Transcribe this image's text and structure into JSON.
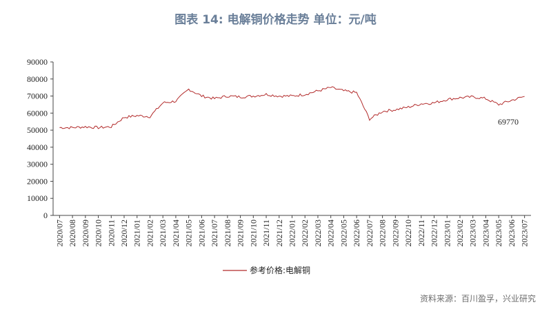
{
  "title": "图表 14: 电解铜价格走势  单位：元/吨",
  "source": "资料来源：百川盈孚，兴业研究",
  "chart_data": {
    "type": "line",
    "title": "图表 14: 电解铜价格走势  单位：元/吨",
    "ylabel": "",
    "xlabel": "",
    "ylim": [
      0,
      90000
    ],
    "yticks": [
      0,
      10000,
      20000,
      30000,
      40000,
      50000,
      60000,
      70000,
      80000,
      90000
    ],
    "categories": [
      "2020/07",
      "2020/08",
      "2020/09",
      "2020/10",
      "2020/11",
      "2020/12",
      "2021/01",
      "2021/02",
      "2021/03",
      "2021/04",
      "2021/05",
      "2021/06",
      "2021/07",
      "2021/08",
      "2021/09",
      "2021/10",
      "2021/11",
      "2021/12",
      "2022/01",
      "2022/02",
      "2022/03",
      "2022/04",
      "2022/05",
      "2022/06",
      "2022/07",
      "2022/08",
      "2022/09",
      "2022/10",
      "2022/11",
      "2022/12",
      "2023/01",
      "2023/02",
      "2023/03",
      "2023/04",
      "2023/05",
      "2023/06",
      "2023/07"
    ],
    "series": [
      {
        "name": "参考价格:电解铜",
        "color": "#b22a2a",
        "values": [
          51500,
          51500,
          52000,
          51500,
          52000,
          57500,
          58500,
          58000,
          66000,
          67000,
          74000,
          70000,
          68500,
          70000,
          69500,
          70000,
          71000,
          70000,
          70000,
          71000,
          73000,
          75000,
          73000,
          72000,
          56500,
          61000,
          62000,
          63500,
          65500,
          66000,
          68000,
          69000,
          69500,
          68500,
          65000,
          67500,
          69770
        ]
      }
    ],
    "annotations": [
      {
        "text": "69770"
      }
    ],
    "legend_position": "bottom",
    "grid": false
  }
}
